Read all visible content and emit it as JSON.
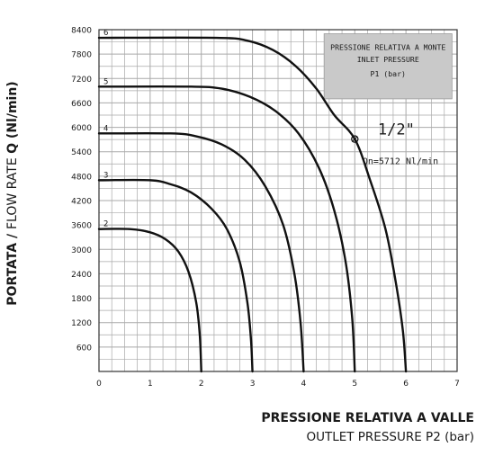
{
  "chart_data": {
    "type": "line",
    "title": "",
    "ylabel": {
      "part1": "PORTATA / ",
      "part2": "FLOW RATE ",
      "part3": "Q",
      "part4": " (Nl/min)"
    },
    "xlabel": {
      "main": "PRESSIONE RELATIVA A VALLE",
      "sub": "OUTLET PRESSURE P2 (bar)"
    },
    "xlim": [
      0,
      7
    ],
    "ylim": [
      0,
      8400
    ],
    "x_ticks": [
      "0",
      "1",
      "2",
      "3",
      "4",
      "5",
      "6",
      "7"
    ],
    "y_ticks": [
      "600",
      "1200",
      "1800",
      "2400",
      "3000",
      "3600",
      "4200",
      "4800",
      "5400",
      "6000",
      "6600",
      "7200",
      "7800",
      "8400"
    ],
    "grid": true,
    "legend_box": {
      "line1": "PRESSIONE RELATIVA A MONTE",
      "line2": "INLET PRESSURE",
      "line3": "P1 (bar)",
      "fill": "#c9c9c9"
    },
    "size_label": "1/2\"",
    "annotation": "Qn=5712 Nl/min",
    "marked_point": {
      "x": 5,
      "y": 5712
    },
    "series": [
      {
        "name": "2",
        "max_flow": 3500,
        "points": [
          [
            0,
            3500
          ],
          [
            0.6,
            3500
          ],
          [
            1.0,
            3420
          ],
          [
            1.3,
            3250
          ],
          [
            1.55,
            2950
          ],
          [
            1.75,
            2450
          ],
          [
            1.9,
            1700
          ],
          [
            1.97,
            900
          ],
          [
            2.0,
            0
          ]
        ]
      },
      {
        "name": "3",
        "max_flow": 4700,
        "points": [
          [
            0,
            4700
          ],
          [
            1.0,
            4700
          ],
          [
            1.4,
            4600
          ],
          [
            1.8,
            4400
          ],
          [
            2.2,
            4000
          ],
          [
            2.5,
            3500
          ],
          [
            2.75,
            2700
          ],
          [
            2.9,
            1700
          ],
          [
            2.97,
            800
          ],
          [
            3.0,
            0
          ]
        ]
      },
      {
        "name": "4",
        "max_flow": 5850,
        "points": [
          [
            0,
            5850
          ],
          [
            1.4,
            5850
          ],
          [
            1.9,
            5780
          ],
          [
            2.4,
            5580
          ],
          [
            2.85,
            5200
          ],
          [
            3.25,
            4550
          ],
          [
            3.6,
            3600
          ],
          [
            3.82,
            2400
          ],
          [
            3.94,
            1200
          ],
          [
            4.0,
            0
          ]
        ]
      },
      {
        "name": "5",
        "max_flow": 7000,
        "points": [
          [
            0,
            7000
          ],
          [
            1.8,
            7000
          ],
          [
            2.4,
            6950
          ],
          [
            2.95,
            6750
          ],
          [
            3.45,
            6400
          ],
          [
            3.9,
            5850
          ],
          [
            4.3,
            5000
          ],
          [
            4.6,
            3950
          ],
          [
            4.82,
            2700
          ],
          [
            4.95,
            1300
          ],
          [
            5.0,
            0
          ]
        ]
      },
      {
        "name": "6",
        "max_flow": 8200,
        "points": [
          [
            0,
            8200
          ],
          [
            2.3,
            8200
          ],
          [
            2.9,
            8130
          ],
          [
            3.4,
            7900
          ],
          [
            3.85,
            7500
          ],
          [
            4.25,
            6950
          ],
          [
            4.6,
            6300
          ],
          [
            5.0,
            5712
          ],
          [
            5.3,
            4700
          ],
          [
            5.6,
            3500
          ],
          [
            5.8,
            2200
          ],
          [
            5.94,
            1000
          ],
          [
            6.0,
            0
          ]
        ]
      }
    ],
    "colors": {
      "grid": "#a9a9a9",
      "curve": "#111111",
      "text": "#1a1a1a"
    }
  }
}
